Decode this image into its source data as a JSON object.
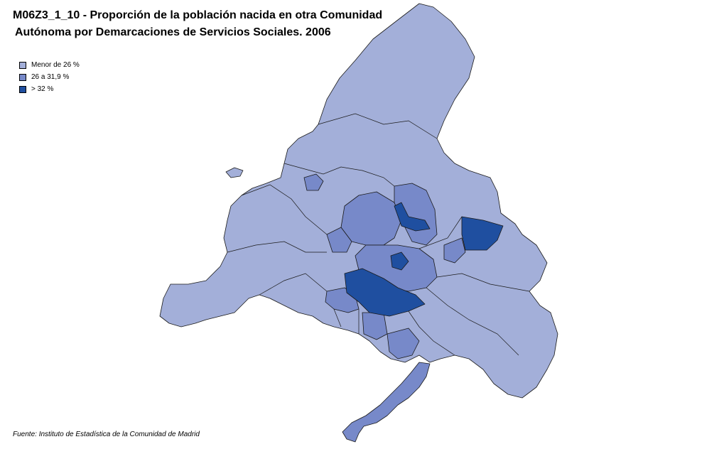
{
  "title_line1": "M06Z3_1_10 - Proporción de la población nacida  en otra Comunidad",
  "title_line2": "Autónoma  por Demarcaciones de Servicios Sociales. 2006",
  "legend": [
    {
      "label": "Menor de 26 %",
      "color": "#a3afd9"
    },
    {
      "label": "26 a 31,9 %",
      "color": "#7789c9"
    },
    {
      "label": "> 32 %",
      "color": "#1f4fa0"
    }
  ],
  "source": "Fuente: Instituto de Estadística de la Comunidad de Madrid"
}
